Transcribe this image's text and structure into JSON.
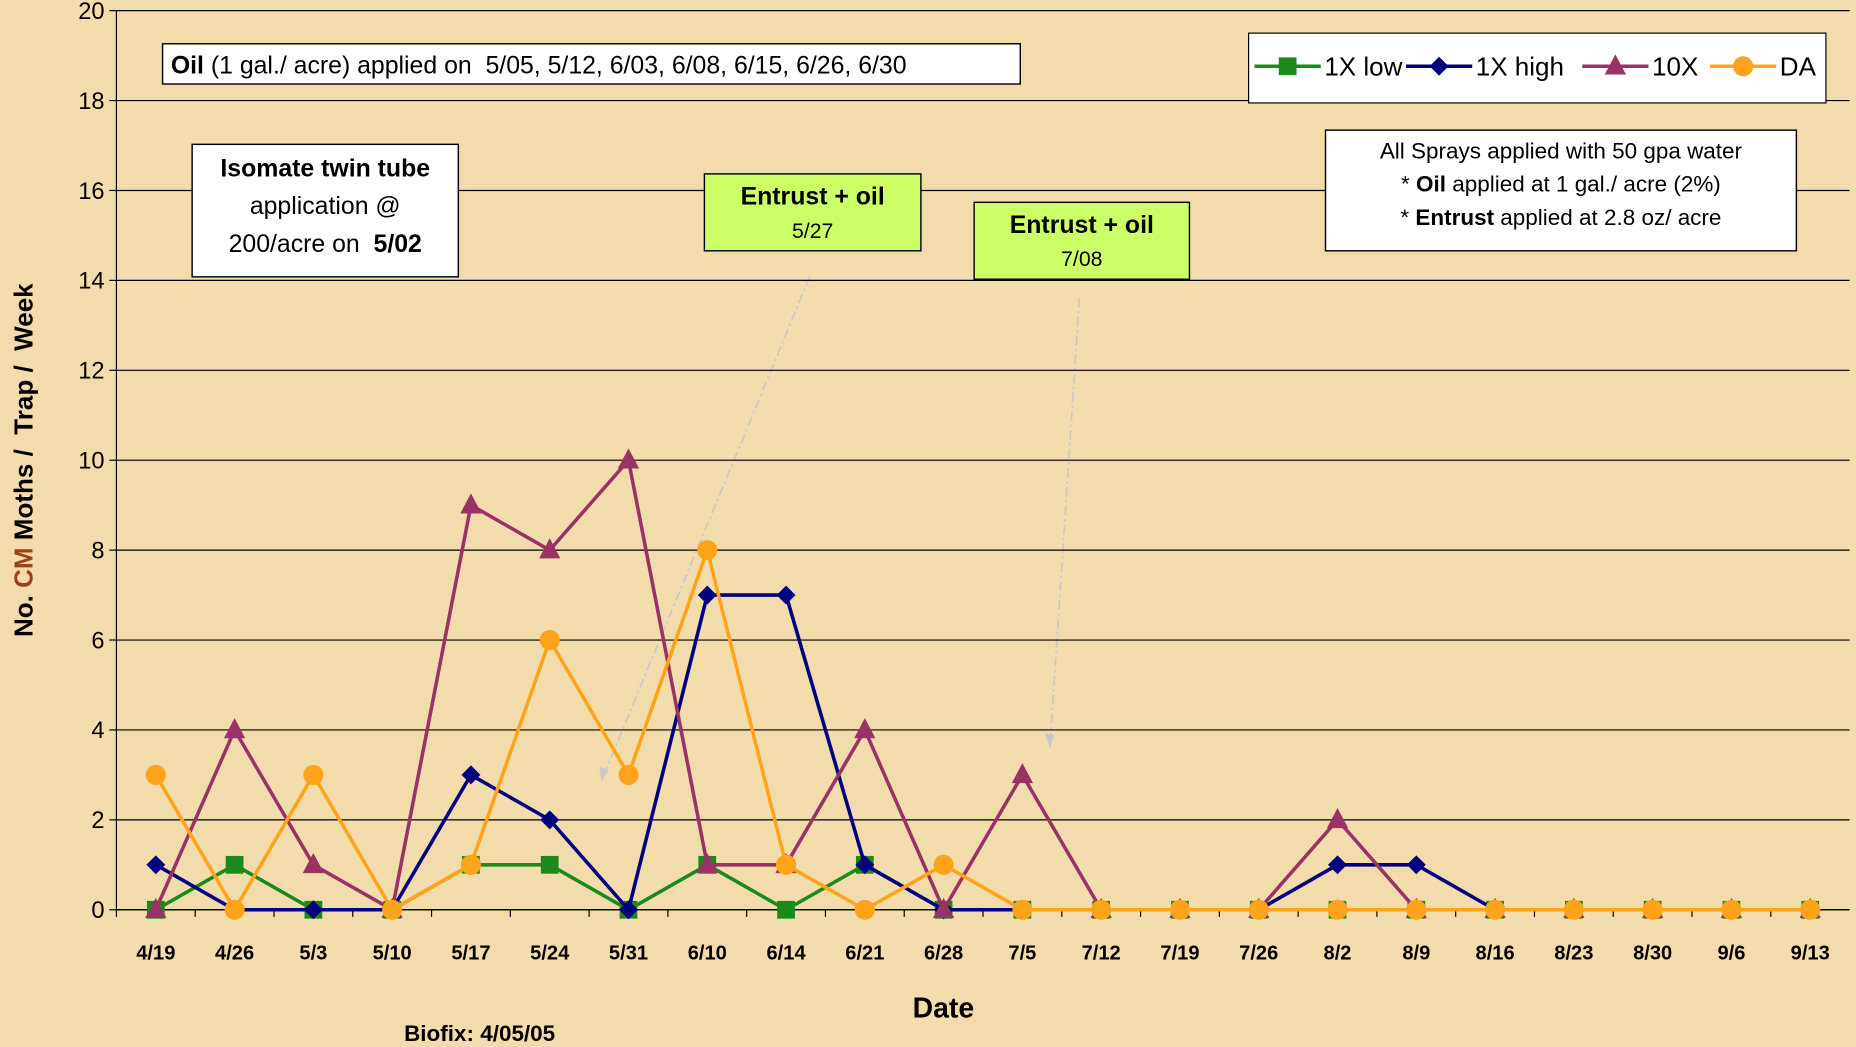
{
  "chart_data": {
    "type": "line",
    "xlabel": "Date",
    "ylabel": [
      {
        "text": "No. "
      },
      {
        "text": "CM",
        "color": "#a0401a"
      },
      {
        "text": " Moths /  Trap /  Week"
      }
    ],
    "note": "Biofix: 4/05/05",
    "categories": [
      "4/19",
      "4/26",
      "5/3",
      "5/10",
      "5/17",
      "5/24",
      "5/31",
      "6/10",
      "6/14",
      "6/21",
      "6/28",
      "7/5",
      "7/12",
      "7/19",
      "7/26",
      "8/2",
      "8/9",
      "8/16",
      "8/23",
      "8/30",
      "9/6",
      "9/13"
    ],
    "series": [
      {
        "name": "1X low",
        "color": "#1a8a1a",
        "marker": "square",
        "values": [
          0,
          1,
          0,
          0,
          1,
          1,
          0,
          1,
          0,
          1,
          0,
          0,
          0,
          0,
          0,
          0,
          0,
          0,
          0,
          0,
          0,
          0
        ]
      },
      {
        "name": "1X high",
        "color": "#000080",
        "marker": "diamond",
        "values": [
          1,
          0,
          0,
          0,
          3,
          2,
          0,
          7,
          7,
          1,
          0,
          0,
          0,
          0,
          0,
          1,
          1,
          0,
          0,
          0,
          0,
          0
        ]
      },
      {
        "name": "10X",
        "color": "#993366",
        "marker": "triangle",
        "values": [
          0,
          4,
          1,
          0,
          9,
          8,
          10,
          1,
          1,
          4,
          0,
          3,
          0,
          0,
          0,
          2,
          0,
          0,
          0,
          0,
          0,
          0
        ]
      },
      {
        "name": "DA",
        "color": "#ffa31a",
        "marker": "circle",
        "values": [
          3,
          0,
          3,
          0,
          1,
          6,
          3,
          8,
          1,
          0,
          1,
          0,
          0,
          0,
          0,
          0,
          0,
          0,
          0,
          0,
          0,
          0
        ]
      }
    ],
    "ylim": [
      0,
      20
    ],
    "yticks": [
      0,
      2,
      4,
      6,
      8,
      10,
      12,
      14,
      16,
      18,
      20
    ],
    "grid": true,
    "legend": "top-right",
    "annotations": [
      {
        "fill": "#ffffff",
        "lines": [
          [
            {
              "text": "Oil",
              "bold": true
            },
            {
              "text": " (1 gal./ acre) applied on  5/05, 5/12, 6/03, 6/08, 6/15, 6/26, 6/30"
            }
          ]
        ]
      },
      {
        "fill": "#ffffff",
        "lines": [
          [
            {
              "text": "Isomate twin tube",
              "bold": true
            }
          ],
          [
            {
              "text": "application @"
            }
          ],
          [
            {
              "text": "200/acre on  "
            },
            {
              "text": "5/02",
              "bold": true
            }
          ]
        ]
      },
      {
        "fill": "#ccff66",
        "lines": [
          [
            {
              "text": "Entrust + oil",
              "bold": true
            }
          ],
          [
            {
              "text": "5/27"
            }
          ]
        ]
      },
      {
        "fill": "#ccff66",
        "lines": [
          [
            {
              "text": "Entrust + oil",
              "bold": true
            }
          ],
          [
            {
              "text": "7/08"
            }
          ]
        ]
      },
      {
        "fill": "#ffffff",
        "lines": [
          [
            {
              "text": "All Sprays applied with 50 gpa water"
            }
          ],
          [
            {
              "text": "* "
            },
            {
              "text": "Oil",
              "bold": true
            },
            {
              "text": " applied at 1 gal./ acre (2%)"
            }
          ],
          [
            {
              "text": "* "
            },
            {
              "text": "Entrust",
              "bold": true
            },
            {
              "text": " applied at 2.8 oz/ acre"
            }
          ]
        ]
      }
    ]
  }
}
